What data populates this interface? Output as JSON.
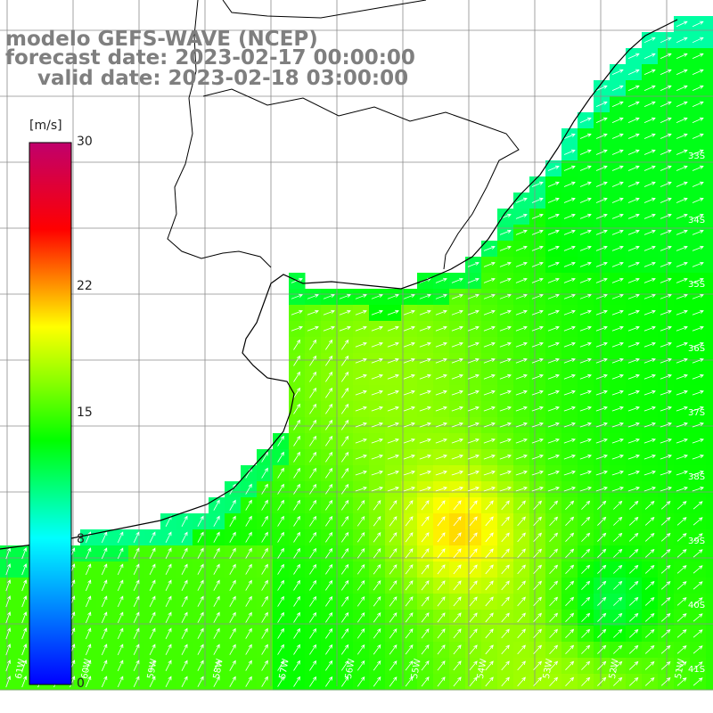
{
  "title": {
    "model": "modelo GEFS-WAVE (NCEP)",
    "forecast": "forecast date: 2023-02-17 00:00:00",
    "valid": "valid date: 2023-02-18 03:00:00"
  },
  "colorbar": {
    "unit": "[m/s]",
    "ticks": [
      "30",
      "22",
      "15",
      "8",
      "0"
    ],
    "tick_values": [
      30,
      22,
      15,
      8,
      0
    ],
    "min": 0,
    "max": 30,
    "colors": [
      "#0000ff",
      "#00ffff",
      "#00ff00",
      "#ffff00",
      "#ff0000",
      "#c0006c"
    ]
  },
  "axes": {
    "lat_labels": [
      "33S",
      "34S",
      "35S",
      "36S",
      "37S",
      "38S",
      "39S",
      "40S",
      "41S"
    ],
    "lon_labels": [
      "61W",
      "60W",
      "59W",
      "58W",
      "57W",
      "56W",
      "55W",
      "54W",
      "53W",
      "52W",
      "51W"
    ]
  },
  "colors": {
    "land": "#ffffff",
    "grid": "#8c8c8c",
    "coast": "#000000",
    "arrow": "#ffffff",
    "title": "#7f7f7f"
  }
}
